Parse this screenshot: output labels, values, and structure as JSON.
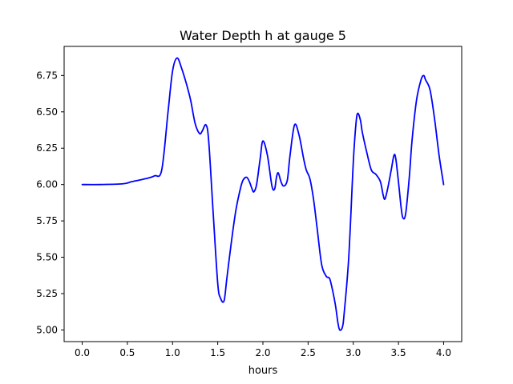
{
  "chart_data": {
    "type": "line",
    "title": "Water Depth h at gauge 5",
    "xlabel": "hours",
    "ylabel": "",
    "xlim": [
      -0.2,
      4.2
    ],
    "ylim": [
      4.92,
      6.95
    ],
    "xticks": [
      0.0,
      0.5,
      1.0,
      1.5,
      2.0,
      2.5,
      3.0,
      3.5,
      4.0
    ],
    "xtick_labels": [
      "0.0",
      "0.5",
      "1.0",
      "1.5",
      "2.0",
      "2.5",
      "3.0",
      "3.5",
      "4.0"
    ],
    "yticks": [
      5.0,
      5.25,
      5.5,
      5.75,
      6.0,
      6.25,
      6.5,
      6.75
    ],
    "ytick_labels": [
      "5.00",
      "5.25",
      "5.50",
      "5.75",
      "6.00",
      "6.25",
      "6.50",
      "6.75"
    ],
    "grid": false,
    "series": [
      {
        "name": "h",
        "color": "#0000ff",
        "x": [
          0.0,
          0.2,
          0.45,
          0.55,
          0.7,
          0.8,
          0.88,
          0.95,
          1.0,
          1.05,
          1.1,
          1.15,
          1.2,
          1.25,
          1.3,
          1.33,
          1.37,
          1.4,
          1.45,
          1.5,
          1.53,
          1.57,
          1.6,
          1.65,
          1.7,
          1.75,
          1.78,
          1.82,
          1.85,
          1.88,
          1.9,
          1.93,
          1.97,
          2.0,
          2.05,
          2.1,
          2.13,
          2.15,
          2.17,
          2.2,
          2.23,
          2.27,
          2.3,
          2.35,
          2.4,
          2.45,
          2.48,
          2.52,
          2.56,
          2.6,
          2.65,
          2.7,
          2.73,
          2.75,
          2.8,
          2.83,
          2.85,
          2.88,
          2.9,
          2.95,
          3.0,
          3.03,
          3.05,
          3.08,
          3.1,
          3.15,
          3.2,
          3.25,
          3.3,
          3.33,
          3.35,
          3.38,
          3.42,
          3.45,
          3.47,
          3.5,
          3.53,
          3.55,
          3.58,
          3.62,
          3.65,
          3.7,
          3.75,
          3.78,
          3.8,
          3.85,
          3.9,
          3.95,
          4.0
        ],
        "y": [
          6.0,
          6.0,
          6.005,
          6.02,
          6.04,
          6.06,
          6.1,
          6.5,
          6.78,
          6.87,
          6.8,
          6.7,
          6.58,
          6.42,
          6.35,
          6.37,
          6.41,
          6.3,
          5.8,
          5.32,
          5.22,
          5.2,
          5.35,
          5.6,
          5.82,
          5.97,
          6.03,
          6.05,
          6.02,
          5.97,
          5.95,
          6.0,
          6.18,
          6.3,
          6.2,
          5.99,
          5.97,
          6.05,
          6.08,
          6.02,
          5.99,
          6.03,
          6.2,
          6.41,
          6.34,
          6.18,
          6.1,
          6.04,
          5.9,
          5.7,
          5.45,
          5.37,
          5.36,
          5.33,
          5.18,
          5.05,
          5.0,
          5.02,
          5.12,
          5.5,
          6.15,
          6.42,
          6.49,
          6.44,
          6.36,
          6.22,
          6.1,
          6.07,
          6.02,
          5.93,
          5.9,
          5.97,
          6.1,
          6.2,
          6.18,
          6.02,
          5.84,
          5.77,
          5.8,
          6.05,
          6.3,
          6.58,
          6.72,
          6.75,
          6.72,
          6.65,
          6.45,
          6.2,
          6.0
        ]
      }
    ]
  }
}
